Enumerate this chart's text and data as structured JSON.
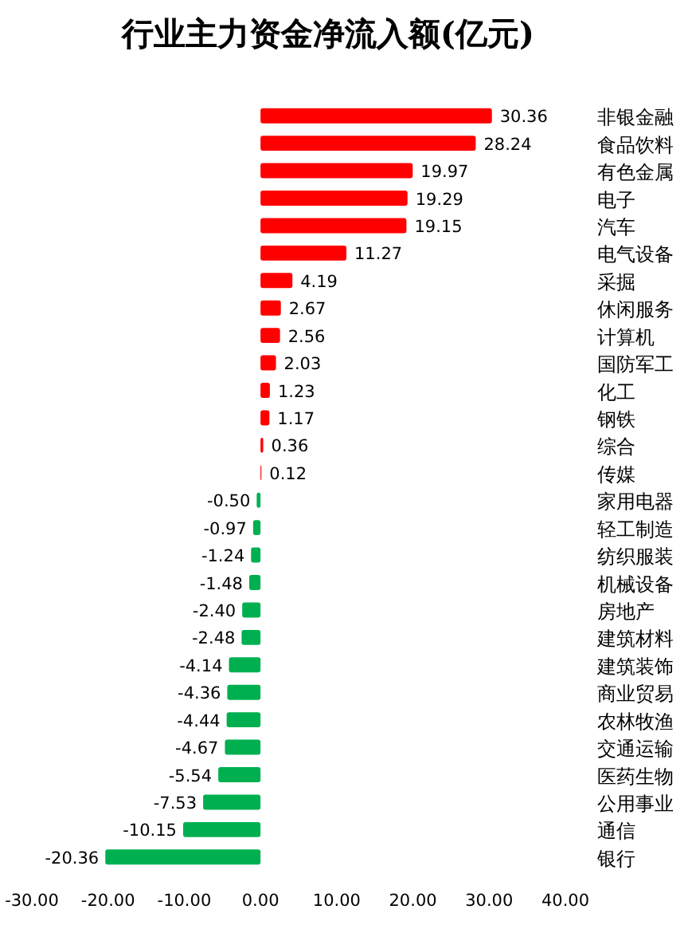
{
  "chart_data": {
    "type": "bar",
    "orientation": "horizontal",
    "title": "行业主力资金净流入额(亿元)",
    "categories": [
      "非银金融",
      "食品饮料",
      "有色金属",
      "电子",
      "汽车",
      "电气设备",
      "采掘",
      "休闲服务",
      "计算机",
      "国防军工",
      "化工",
      "钢铁",
      "综合",
      "传媒",
      "家用电器",
      "轻工制造",
      "纺织服装",
      "机械设备",
      "房地产",
      "建筑材料",
      "建筑装饰",
      "商业贸易",
      "农林牧渔",
      "交通运输",
      "医药生物",
      "公用事业",
      "通信",
      "银行"
    ],
    "values": [
      30.36,
      28.24,
      19.97,
      19.29,
      19.15,
      11.27,
      4.19,
      2.67,
      2.56,
      2.03,
      1.23,
      1.17,
      0.36,
      0.12,
      -0.5,
      -0.97,
      -1.24,
      -1.48,
      -2.4,
      -2.48,
      -4.14,
      -4.36,
      -4.44,
      -4.67,
      -5.54,
      -7.53,
      -10.15,
      -20.36
    ],
    "value_labels": [
      "30.36",
      "28.24",
      "19.97",
      "19.29",
      "19.15",
      "11.27",
      "4.19",
      "2.67",
      "2.56",
      "2.03",
      "1.23",
      "1.17",
      "0.36",
      "0.12",
      "-0.50",
      "-0.97",
      "-1.24",
      "-1.48",
      "-2.40",
      "-2.48",
      "-4.14",
      "-4.36",
      "-4.44",
      "-4.67",
      "-5.54",
      "-7.53",
      "-10.15",
      "-20.36"
    ],
    "colors": [
      "#ff0000",
      "#ff0000",
      "#ff0000",
      "#ff0000",
      "#ff0000",
      "#ff0000",
      "#ff0000",
      "#ff0000",
      "#ff0000",
      "#ff0000",
      "#ff0000",
      "#ff0000",
      "#ff0000",
      "#ff0000",
      "#00b050",
      "#00b050",
      "#00b050",
      "#00b050",
      "#00b050",
      "#00b050",
      "#00b050",
      "#00b050",
      "#00b050",
      "#00b050",
      "#00b050",
      "#00b050",
      "#00b050",
      "#00b050"
    ],
    "xlim": [
      -30,
      40
    ],
    "xticks": [
      {
        "value": -30,
        "label": "-30.00"
      },
      {
        "value": -20,
        "label": "-20.00"
      },
      {
        "value": -10,
        "label": "-10.00"
      },
      {
        "value": 0,
        "label": "0.00"
      },
      {
        "value": 10,
        "label": "10.00"
      },
      {
        "value": 20,
        "label": "20.00"
      },
      {
        "value": 30,
        "label": "30.00"
      },
      {
        "value": 40,
        "label": "40.00"
      }
    ]
  }
}
